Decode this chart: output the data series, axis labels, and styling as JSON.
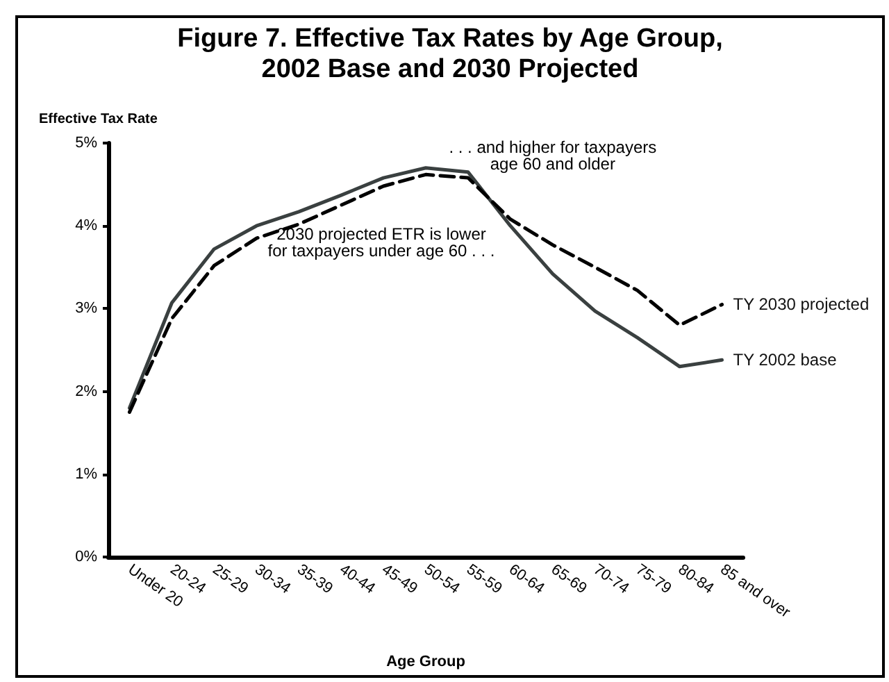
{
  "chart_data": {
    "type": "line",
    "title": "Figure 7. Effective Tax Rates by Age Group,\n2002 Base and 2030 Projected",
    "ylabel": "Effective Tax Rate",
    "xlabel": "Age Group",
    "categories": [
      "Under 20",
      "20-24",
      "25-29",
      "30-34",
      "35-39",
      "40-44",
      "45-49",
      "50-54",
      "55-59",
      "60-64",
      "65-69",
      "70-74",
      "75-79",
      "80-84",
      "85 and over"
    ],
    "series": [
      {
        "name": "TY 2002 base",
        "color": "#3a4040",
        "line_style": "solid",
        "values": [
          1.8,
          3.07,
          3.72,
          4.0,
          4.17,
          4.37,
          4.58,
          4.7,
          4.65,
          4.0,
          3.42,
          2.97,
          2.65,
          2.3,
          2.38
        ]
      },
      {
        "name": "TY 2030 projected",
        "color": "#000000",
        "line_style": "dashed",
        "values": [
          1.75,
          2.88,
          3.52,
          3.85,
          4.02,
          4.25,
          4.48,
          4.62,
          4.58,
          4.08,
          3.77,
          3.5,
          3.22,
          2.8,
          3.05
        ]
      }
    ],
    "ylim": [
      0,
      5
    ],
    "yticks": [
      {
        "value": 0,
        "label": "0%"
      },
      {
        "value": 1,
        "label": "1%"
      },
      {
        "value": 2,
        "label": "2%"
      },
      {
        "value": 3,
        "label": "3%"
      },
      {
        "value": 4,
        "label": "4%"
      },
      {
        "value": 5,
        "label": "5%"
      }
    ],
    "annotations": [
      "2030 projected ETR is lower\nfor taxpayers under age 60 . . .",
      ". . . and higher for taxpayers\nage 60 and older"
    ],
    "grid": false,
    "legend": false,
    "marker": "none"
  }
}
